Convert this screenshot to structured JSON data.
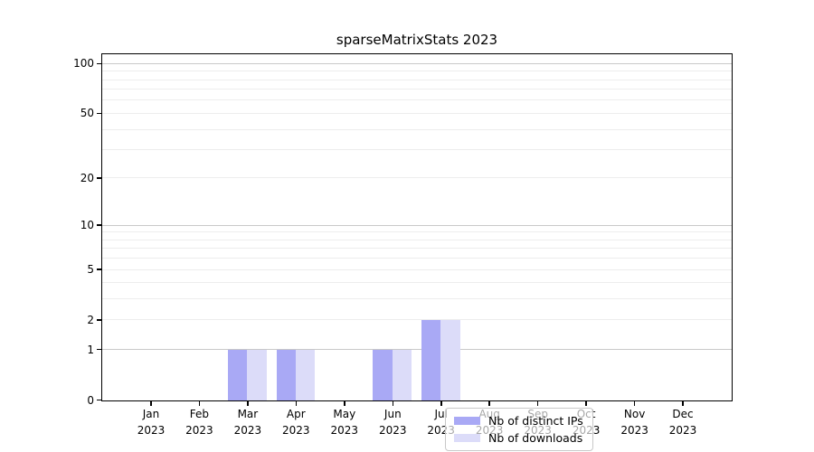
{
  "title": "sparseMatrixStats 2023",
  "colors": {
    "distinct_ips": "#a9a9f5",
    "downloads": "#dcdcf9",
    "grid_minor": "#ededed",
    "grid_major": "#c9c9c9",
    "frame": "#000000",
    "legend_border": "#c8c8c8",
    "background": "#ffffff"
  },
  "legend": {
    "items": [
      {
        "label": "Nb of distinct IPs",
        "color": "#a9a9f5"
      },
      {
        "label": "Nb of downloads",
        "color": "#dcdcf9"
      }
    ]
  },
  "chart_data": {
    "type": "bar",
    "title": "sparseMatrixStats 2023",
    "categories": [
      "Jan 2023",
      "Feb 2023",
      "Mar 2023",
      "Apr 2023",
      "May 2023",
      "Jun 2023",
      "Jul 2023",
      "Aug 2023",
      "Sep 2023",
      "Oct 2023",
      "Nov 2023",
      "Dec 2023"
    ],
    "series": [
      {
        "name": "Nb of distinct IPs",
        "color": "#a9a9f5",
        "values": [
          0,
          0,
          1,
          1,
          0,
          1,
          2,
          0,
          0,
          0,
          0,
          0
        ]
      },
      {
        "name": "Nb of downloads",
        "color": "#dcdcf9",
        "values": [
          0,
          0,
          1,
          1,
          0,
          1,
          2,
          0,
          0,
          0,
          0,
          0
        ]
      }
    ],
    "xlabel": "",
    "ylabel": "",
    "yscale": "log10(1+x)",
    "ylim": [
      0,
      113
    ],
    "y_tick_values": [
      0,
      1,
      2,
      5,
      10,
      20,
      50,
      100
    ],
    "grid_values": [
      1,
      2,
      3,
      4,
      5,
      6,
      7,
      8,
      9,
      10,
      20,
      30,
      40,
      50,
      60,
      70,
      80,
      90,
      100
    ],
    "grid_major_values": [
      1,
      10,
      100
    ],
    "grid": "on",
    "legend_position": "lower center",
    "bar_group_width_fraction": 0.8
  }
}
